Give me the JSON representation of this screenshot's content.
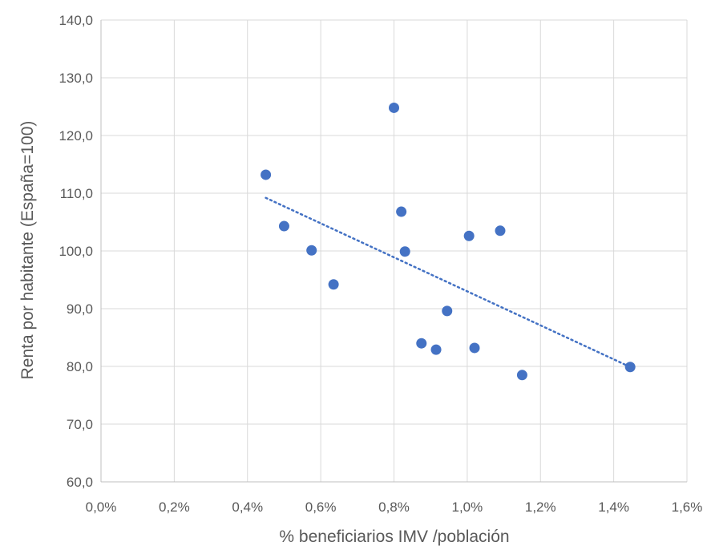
{
  "chart_data": {
    "type": "scatter",
    "title": "",
    "xlabel": "% beneficiarios IMV /población",
    "ylabel": "Renta por habitante (España=100)",
    "xlim": [
      0.0,
      1.6
    ],
    "ylim": [
      60.0,
      140.0
    ],
    "x_ticks": [
      0.0,
      0.2,
      0.4,
      0.6,
      0.8,
      1.0,
      1.2,
      1.4,
      1.6
    ],
    "x_tick_labels": [
      "0,0%",
      "0,2%",
      "0,4%",
      "0,6%",
      "0,8%",
      "1,0%",
      "1,2%",
      "1,4%",
      "1,6%"
    ],
    "y_ticks": [
      60,
      70,
      80,
      90,
      100,
      110,
      120,
      130,
      140
    ],
    "y_tick_labels": [
      "60,0",
      "70,0",
      "80,0",
      "90,0",
      "100,0",
      "110,0",
      "120,0",
      "130,0",
      "140,0"
    ],
    "grid": true,
    "marker_color": "#4472c4",
    "series": [
      {
        "points": [
          {
            "x": 0.45,
            "y": 113.2
          },
          {
            "x": 0.5,
            "y": 104.3
          },
          {
            "x": 0.575,
            "y": 100.1
          },
          {
            "x": 0.635,
            "y": 94.2
          },
          {
            "x": 0.8,
            "y": 124.8
          },
          {
            "x": 0.82,
            "y": 106.8
          },
          {
            "x": 0.83,
            "y": 99.9
          },
          {
            "x": 0.875,
            "y": 84.0
          },
          {
            "x": 0.915,
            "y": 82.9
          },
          {
            "x": 0.945,
            "y": 89.6
          },
          {
            "x": 1.005,
            "y": 102.6
          },
          {
            "x": 1.02,
            "y": 83.2
          },
          {
            "x": 1.09,
            "y": 103.5
          },
          {
            "x": 1.15,
            "y": 78.5
          },
          {
            "x": 1.445,
            "y": 79.9
          }
        ]
      }
    ],
    "trendline": {
      "type": "linear",
      "style": "dotted",
      "start": {
        "x": 0.45,
        "y": 109.2
      },
      "end": {
        "x": 1.445,
        "y": 79.9
      }
    }
  }
}
